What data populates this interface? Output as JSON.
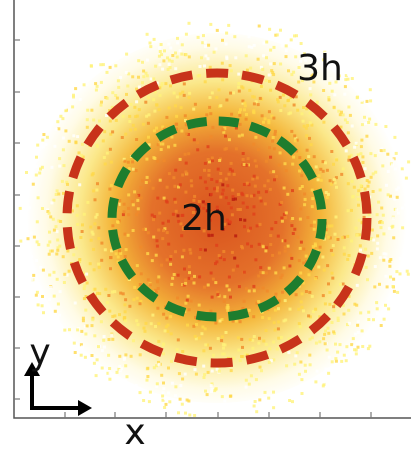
{
  "labels": {
    "outer": "3h",
    "inner": "2h",
    "x_axis": "x",
    "y_axis": "y"
  }
}
